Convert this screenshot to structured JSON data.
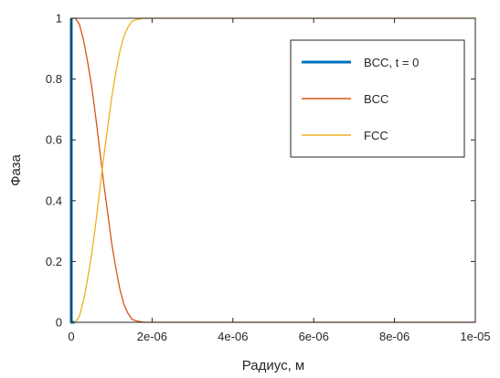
{
  "chart_data": {
    "type": "line",
    "title": "",
    "xlabel": "Радиус, м",
    "ylabel": "Фаза",
    "xlim": [
      0,
      1e-05
    ],
    "ylim": [
      0,
      1
    ],
    "x_ticks": [
      0,
      2e-06,
      4e-06,
      6e-06,
      8e-06,
      1e-05
    ],
    "x_tick_labels": [
      "0",
      "2e-06",
      "4e-06",
      "6e-06",
      "8e-06",
      "1e-05"
    ],
    "y_ticks": [
      0,
      0.2,
      0.4,
      0.6,
      0.8,
      1
    ],
    "y_tick_labels": [
      "0",
      "0.2",
      "0.4",
      "0.6",
      "0.8",
      "1"
    ],
    "grid": false,
    "legend_position": "top-right",
    "series": [
      {
        "name": "BCC, t = 0",
        "color": "#0072BD",
        "x": [
          0,
          0,
          8e-08,
          8e-08
        ],
        "y": [
          1,
          0,
          0,
          0
        ]
      },
      {
        "name": "BCC",
        "color": "#D95319",
        "x": [
          0,
          1e-07,
          2e-07,
          3e-07,
          4e-07,
          5e-07,
          6e-07,
          7e-07,
          8e-07,
          9e-07,
          1e-06,
          1.1e-06,
          1.2e-06,
          1.3e-06,
          1.4e-06,
          1.5e-06,
          1.6e-06,
          1.8e-06,
          1e-05
        ],
        "y": [
          1,
          1,
          0.98,
          0.93,
          0.86,
          0.78,
          0.68,
          0.57,
          0.46,
          0.36,
          0.26,
          0.18,
          0.11,
          0.06,
          0.03,
          0.01,
          0.005,
          0,
          0
        ]
      },
      {
        "name": "FCC",
        "color": "#EDB120",
        "x": [
          0,
          1e-07,
          2e-07,
          3e-07,
          4e-07,
          5e-07,
          6e-07,
          7e-07,
          8e-07,
          9e-07,
          1e-06,
          1.1e-06,
          1.2e-06,
          1.3e-06,
          1.4e-06,
          1.5e-06,
          1.6e-06,
          1.8e-06,
          1e-05
        ],
        "y": [
          0,
          0,
          0.02,
          0.07,
          0.14,
          0.22,
          0.32,
          0.43,
          0.54,
          0.64,
          0.74,
          0.82,
          0.89,
          0.94,
          0.97,
          0.99,
          0.995,
          1,
          1
        ]
      }
    ]
  }
}
